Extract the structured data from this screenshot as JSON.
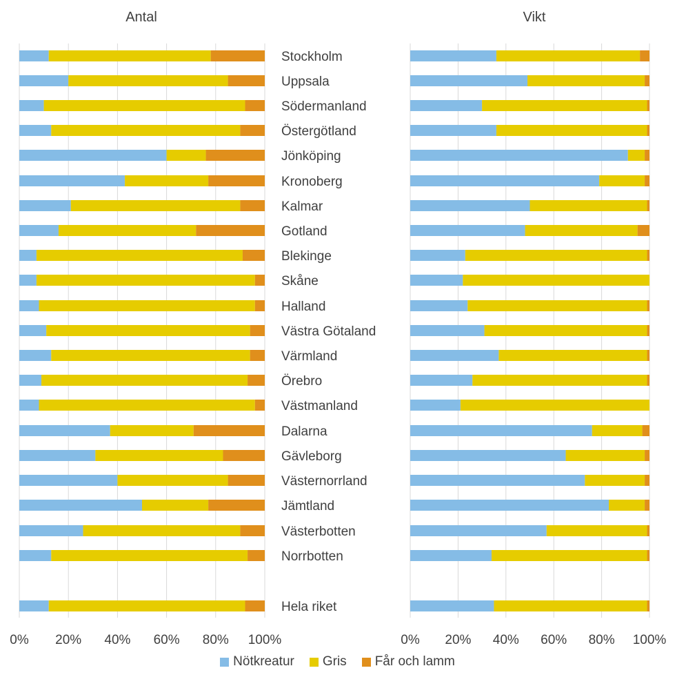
{
  "chart_data": {
    "type": "bar",
    "stacked": "percent",
    "orientation": "horizontal",
    "categories": [
      "Stockholm",
      "Uppsala",
      "Södermanland",
      "Östergötland",
      "Jönköping",
      "Kronoberg",
      "Kalmar",
      "Gotland",
      "Blekinge",
      "Skåne",
      "Halland",
      "Västra Götaland",
      "Värmland",
      "Örebro",
      "Västmanland",
      "Dalarna",
      "Gävleborg",
      "Västernorrland",
      "Jämtland",
      "Västerbotten",
      "Norrbotten",
      "Hela riket"
    ],
    "xlim": [
      0,
      100
    ],
    "ticks": [
      "0%",
      "20%",
      "40%",
      "60%",
      "80%",
      "100%"
    ],
    "grid": true,
    "legend": {
      "position": "bottom",
      "entries": [
        "Nötkreatur",
        "Gris",
        "Får och lamm"
      ]
    },
    "colors": [
      "#85BCE6",
      "#E6CC00",
      "#E08F1C"
    ],
    "panels": [
      {
        "title": "Antal",
        "series": [
          {
            "name": "Nötkreatur",
            "values": [
              12,
              20,
              10,
              13,
              60,
              43,
              21,
              16,
              7,
              7,
              8,
              11,
              13,
              9,
              8,
              37,
              31,
              40,
              50,
              26,
              13,
              12
            ]
          },
          {
            "name": "Gris",
            "values": [
              66,
              65,
              82,
              77,
              16,
              34,
              69,
              56,
              84,
              89,
              88,
              83,
              81,
              84,
              88,
              34,
              52,
              45,
              27,
              64,
              80,
              80
            ]
          },
          {
            "name": "Får och lamm",
            "values": [
              22,
              15,
              8,
              10,
              24,
              23,
              10,
              28,
              9,
              4,
              4,
              6,
              6,
              7,
              4,
              29,
              17,
              15,
              23,
              10,
              7,
              8
            ]
          }
        ]
      },
      {
        "title": "Vikt",
        "series": [
          {
            "name": "Nötkreatur",
            "values": [
              36,
              49,
              30,
              36,
              91,
              79,
              50,
              48,
              23,
              22,
              24,
              31,
              37,
              26,
              21,
              76,
              65,
              73,
              83,
              57,
              34,
              35
            ]
          },
          {
            "name": "Gris",
            "values": [
              60,
              49,
              69,
              63,
              7,
              19,
              49,
              47,
              76,
              78,
              75,
              68,
              62,
              73,
              79,
              21,
              33,
              25,
              15,
              42,
              65,
              64
            ]
          },
          {
            "name": "Får och lamm",
            "values": [
              4,
              2,
              1,
              1,
              2,
              2,
              1,
              5,
              1,
              0,
              1,
              1,
              1,
              1,
              0,
              3,
              2,
              2,
              2,
              1,
              1,
              1
            ]
          }
        ]
      }
    ]
  }
}
